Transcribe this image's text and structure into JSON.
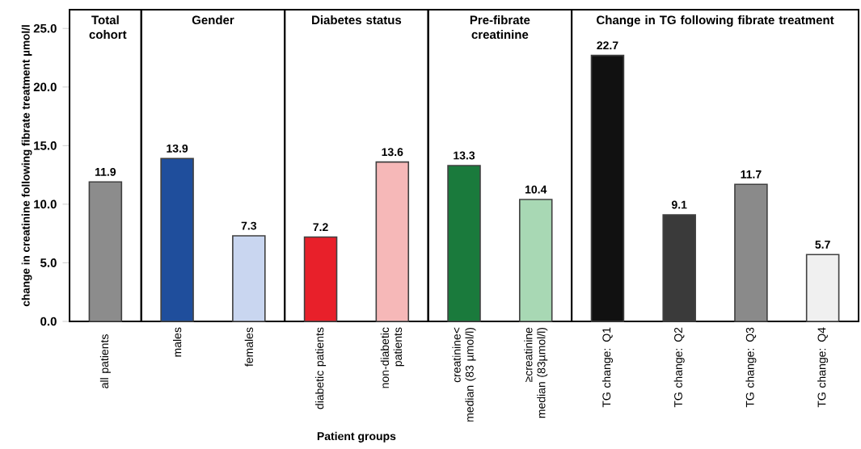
{
  "chart_data": [
    {
      "type": "bar",
      "title": "Total cohort",
      "ylabel": "change in creatinine following fibrate treatment µmol/l",
      "categories": [
        "all patients"
      ],
      "values": [
        11.9
      ],
      "colors": [
        "#8c8c8c"
      ],
      "data_labels": true,
      "ylim": [
        0,
        26.6
      ],
      "yticks": [
        {
          "value": 0,
          "label": "0.0"
        },
        {
          "value": 5,
          "label": "5.0"
        },
        {
          "value": 10,
          "label": "10.0"
        },
        {
          "value": 15,
          "label": "15.0"
        },
        {
          "value": 20,
          "label": "20.0"
        },
        {
          "value": 25,
          "label": "25.0"
        }
      ]
    },
    {
      "type": "bar",
      "title": "Gender",
      "categories": [
        "males",
        "females"
      ],
      "values": [
        13.9,
        7.3
      ],
      "colors": [
        "#1f4e9c",
        "#c9d6f0"
      ],
      "data_labels": true,
      "ylim": [
        0,
        26.6
      ],
      "tick_labels": "x"
    },
    {
      "type": "bar",
      "title": "Diabetes status",
      "xlabel": "Patient groups",
      "categories": [
        "diabetic patients",
        "non-diabetic patients"
      ],
      "values": [
        7.2,
        13.6
      ],
      "colors": [
        "#e8202a",
        "#f6b8b8"
      ],
      "data_labels": true,
      "ylim": [
        0,
        26.6
      ],
      "tick_labels": "x"
    },
    {
      "type": "bar",
      "title": "Pre-fibrate creatinine",
      "categories": [
        "creatinine< median (83 µmol/l)",
        "≥creatinine median (83µmol/l)"
      ],
      "values": [
        13.3,
        10.4
      ],
      "colors": [
        "#1a7a3c",
        "#a8d8b4"
      ],
      "data_labels": true,
      "ylim": [
        0,
        26.6
      ],
      "tick_labels": "x"
    },
    {
      "type": "bar",
      "title": "Change in TG following fibrate treatment",
      "categories": [
        "TG change: Q1",
        "TG change: Q2",
        "TG change: Q3",
        "TG change: Q4"
      ],
      "values": [
        22.7,
        9.1,
        11.7,
        5.7
      ],
      "colors": [
        "#111111",
        "#3a3a3a",
        "#8a8a8a",
        "#f0f0f0"
      ],
      "data_labels": true,
      "ylim": [
        0,
        26.6
      ],
      "tick_labels": "x"
    }
  ]
}
